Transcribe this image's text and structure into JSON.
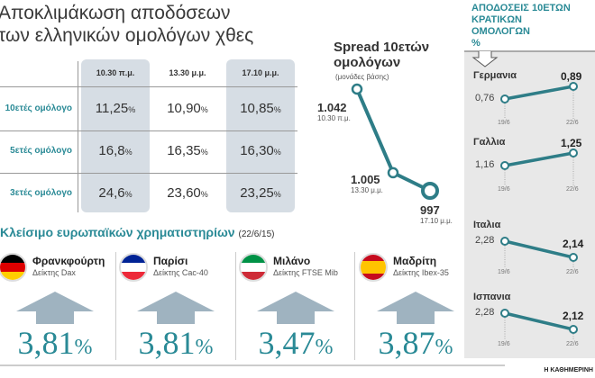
{
  "title": "Αποκλιμάκωση αποδόσεων\nτων ελληνικών ομολόγων χθες",
  "table": {
    "headers": [
      "10.30 π.μ.",
      "13.30 μ.μ.",
      "17.10 μ.μ."
    ],
    "rows": [
      {
        "label": "10ετές ομόλογο",
        "values": [
          "11,25",
          "10,90",
          "10,85"
        ]
      },
      {
        "label": "5ετές ομόλογο",
        "values": [
          "16,8",
          "16,35",
          "16,30"
        ]
      },
      {
        "label": "3ετές ομόλογο",
        "values": [
          "24,6",
          "23,60",
          "23,25"
        ]
      }
    ],
    "unit": "%"
  },
  "chart_data": [
    {
      "type": "line",
      "title": "Spread 10ετών ομολόγων",
      "subtitle": "(μονάδες βάσης)",
      "points": [
        {
          "value": 1042,
          "label": "1.042",
          "time": "10.30 π.μ."
        },
        {
          "value": 1005,
          "label": "1.005",
          "time": "13.30 μ.μ."
        },
        {
          "value": 997,
          "label": "997",
          "time": "17.10 μ.μ."
        }
      ]
    },
    {
      "type": "line",
      "title": "ΑΠΟΔΟΣΕΙΣ 10ΕΤΩΝ ΚΡΑΤΙΚΩΝ ΟΜΟΛΟΓΩΝ",
      "unit": "%",
      "x": [
        "19/6",
        "22/6"
      ],
      "series": [
        {
          "name": "Γερμανια",
          "values": [
            0.76,
            0.89
          ],
          "labels": [
            "0,76",
            "0,89"
          ]
        },
        {
          "name": "Γαλλια",
          "values": [
            1.16,
            1.25
          ],
          "labels": [
            "1,16",
            "1,25"
          ]
        },
        {
          "name": "Ιταλια",
          "values": [
            2.28,
            2.14
          ],
          "labels": [
            "2,28",
            "2,14"
          ]
        },
        {
          "name": "Ισπανια",
          "values": [
            2.28,
            2.12
          ],
          "labels": [
            "2,28",
            "2,12"
          ]
        }
      ]
    }
  ],
  "europe": {
    "title": "Κλείσιμο ευρωπαϊκών χρηματιστηρίων",
    "date": "(22/6/15)",
    "markets": [
      {
        "city": "Φρανκφούρτη",
        "index": "Δείκτης Dax",
        "change": "3,81",
        "flag": [
          "#000",
          "#dd0000",
          "#ffce00"
        ],
        "dir": "row"
      },
      {
        "city": "Παρίσι",
        "index": "Δείκτης Cac-40",
        "change": "3,81",
        "flag": [
          "#002395",
          "#fff",
          "#ed2939"
        ],
        "dir": "column"
      },
      {
        "city": "Μιλάνο",
        "index": "Δείκτης FTSE Mib",
        "change": "3,47",
        "flag": [
          "#009246",
          "#fff",
          "#ce2b37"
        ],
        "dir": "column"
      },
      {
        "city": "Μαδρίτη",
        "index": "Δείκτης Ibex-35",
        "change": "3,87",
        "flag": [
          "#c60b1e",
          "#ffc400",
          "#c60b1e"
        ],
        "dir": "row"
      }
    ],
    "unit": "%"
  },
  "credit": "Η ΚΑΘΗΜΕΡΙΝΗ",
  "colors": {
    "teal": "#2a8a96",
    "line": "#2e7d87",
    "arrow": "#9fb3c0"
  }
}
